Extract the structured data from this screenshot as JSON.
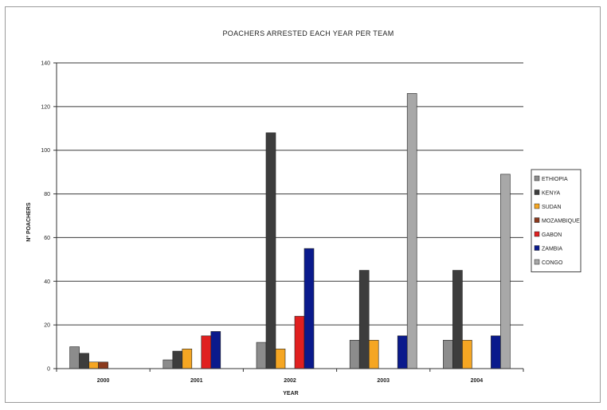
{
  "chart_data": {
    "type": "bar",
    "title": "POACHERS ARRESTED EACH YEAR PER TEAM",
    "xlabel": "YEAR",
    "ylabel": "Nº POACHERS",
    "categories": [
      "2000",
      "2001",
      "2002",
      "2003",
      "2004"
    ],
    "ylim": [
      0,
      140
    ],
    "yticks": [
      0,
      20,
      40,
      60,
      80,
      100,
      120,
      140
    ],
    "grid": true,
    "legend_position": "right",
    "series": [
      {
        "name": "ETHIOPIA",
        "color": "#8c8c8c",
        "values": [
          10,
          4,
          12,
          13,
          13
        ]
      },
      {
        "name": "KENYA",
        "color": "#3d3d3d",
        "values": [
          7,
          8,
          108,
          45,
          45
        ]
      },
      {
        "name": "SUDAN",
        "color": "#f5a623",
        "values": [
          3,
          9,
          9,
          13,
          13
        ]
      },
      {
        "name": "MOZAMBIQUE",
        "color": "#8b3a1e",
        "values": [
          3,
          0,
          0,
          0,
          0
        ]
      },
      {
        "name": "GABON",
        "color": "#e02020",
        "values": [
          0,
          15,
          24,
          0,
          0
        ]
      },
      {
        "name": "ZAMBIA",
        "color": "#0a1a8c",
        "values": [
          0,
          17,
          55,
          15,
          15
        ]
      },
      {
        "name": "CONGO",
        "color": "#a8a8a8",
        "values": [
          0,
          0,
          0,
          126,
          89
        ]
      }
    ]
  }
}
